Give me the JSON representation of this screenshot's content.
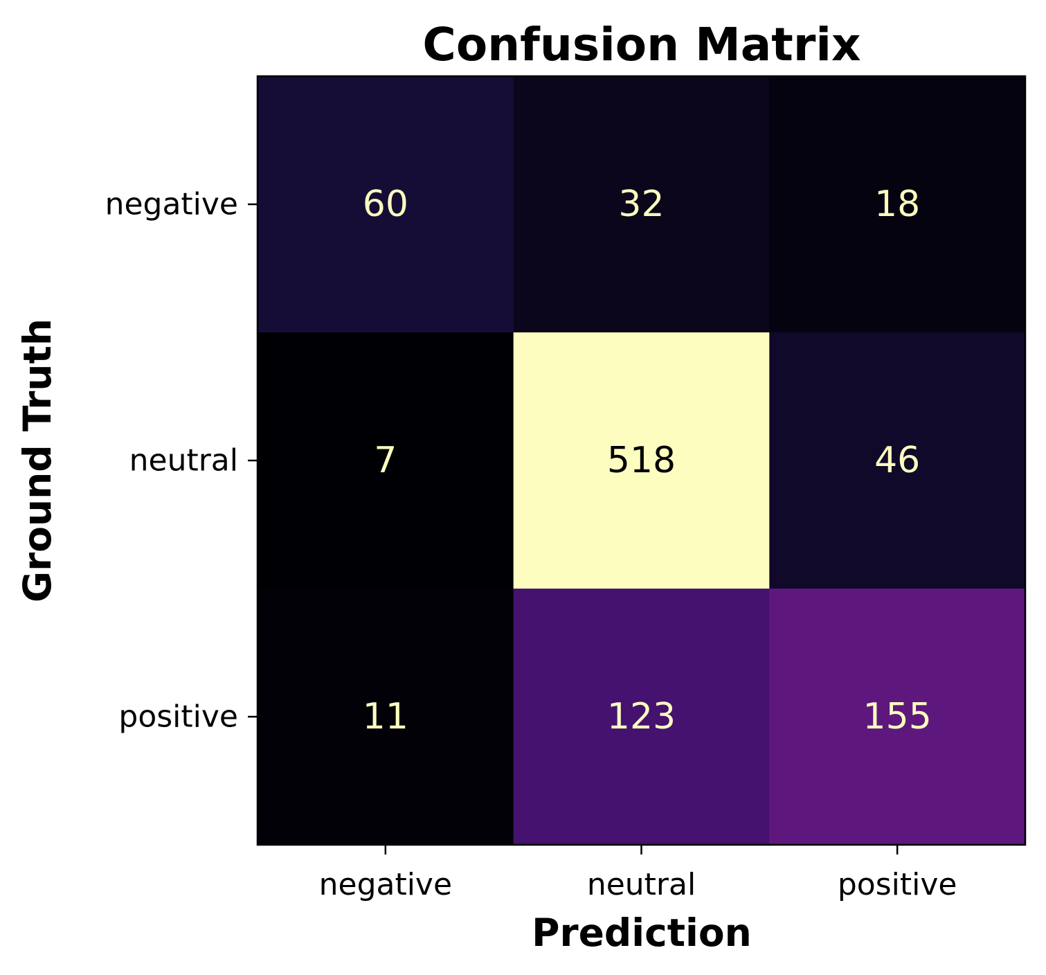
{
  "chart_data": {
    "type": "heatmap",
    "title": "Confusion Matrix",
    "xlabel": "Prediction",
    "ylabel": "Ground Truth",
    "x_categories": [
      "negative",
      "neutral",
      "positive"
    ],
    "y_categories": [
      "negative",
      "neutral",
      "positive"
    ],
    "values": [
      [
        60,
        32,
        18
      ],
      [
        7,
        518,
        46
      ],
      [
        11,
        123,
        155
      ]
    ],
    "colormap": "magma",
    "colorbar": false,
    "grid": false
  }
}
